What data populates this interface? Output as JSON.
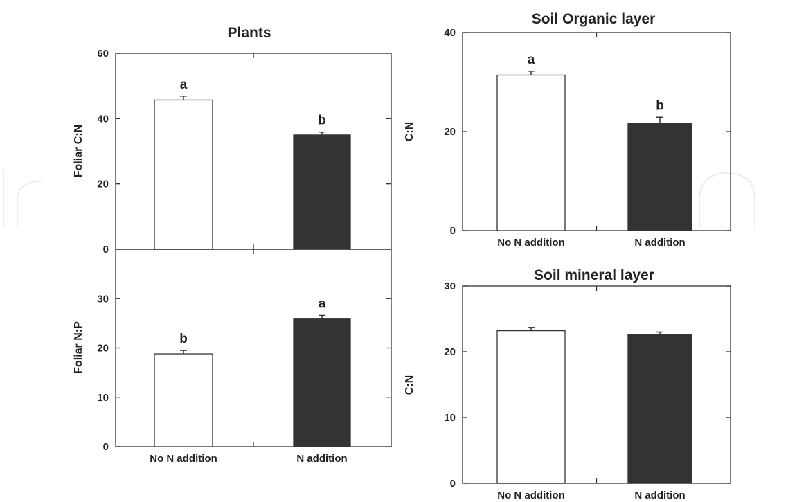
{
  "chart_data": [
    {
      "type": "bar",
      "title": "Plants",
      "ylabel": "Foliar C:N",
      "ylim": [
        0,
        60
      ],
      "yticks": [
        0,
        20,
        40,
        60
      ],
      "categories": [
        "No N addition",
        "N addition"
      ],
      "values": [
        45.7,
        35.0
      ],
      "errors": [
        1.2,
        0.9
      ],
      "significance": [
        "a",
        "b"
      ],
      "bar_colors": [
        "#ffffff",
        "#333333"
      ],
      "show_category_labels": false
    },
    {
      "type": "bar",
      "title": "",
      "ylabel": "Foliar N:P",
      "ylim": [
        0,
        40
      ],
      "yticks": [
        0,
        10,
        20,
        30
      ],
      "categories": [
        "No N addition",
        "N addition"
      ],
      "values": [
        18.8,
        26.0
      ],
      "errors": [
        0.7,
        0.6
      ],
      "significance": [
        "b",
        "a"
      ],
      "bar_colors": [
        "#ffffff",
        "#333333"
      ],
      "show_category_labels": true
    },
    {
      "type": "bar",
      "title": "Soil Organic layer",
      "ylabel": "C:N",
      "ylim": [
        0,
        40
      ],
      "yticks": [
        0,
        20,
        40
      ],
      "categories": [
        "No N addition",
        "N addition"
      ],
      "values": [
        31.4,
        21.6
      ],
      "errors": [
        0.8,
        1.3
      ],
      "significance": [
        "a",
        "b"
      ],
      "bar_colors": [
        "#ffffff",
        "#333333"
      ],
      "show_category_labels": true
    },
    {
      "type": "bar",
      "title": "Soil mineral layer",
      "ylabel": "C:N",
      "ylim": [
        0,
        30
      ],
      "yticks": [
        0,
        10,
        20,
        30
      ],
      "categories": [
        "No N addition",
        "N addition"
      ],
      "values": [
        23.2,
        22.6
      ],
      "errors": [
        0.5,
        0.4
      ],
      "significance": [
        "",
        ""
      ],
      "bar_colors": [
        "#ffffff",
        "#333333"
      ],
      "show_category_labels": true
    }
  ]
}
